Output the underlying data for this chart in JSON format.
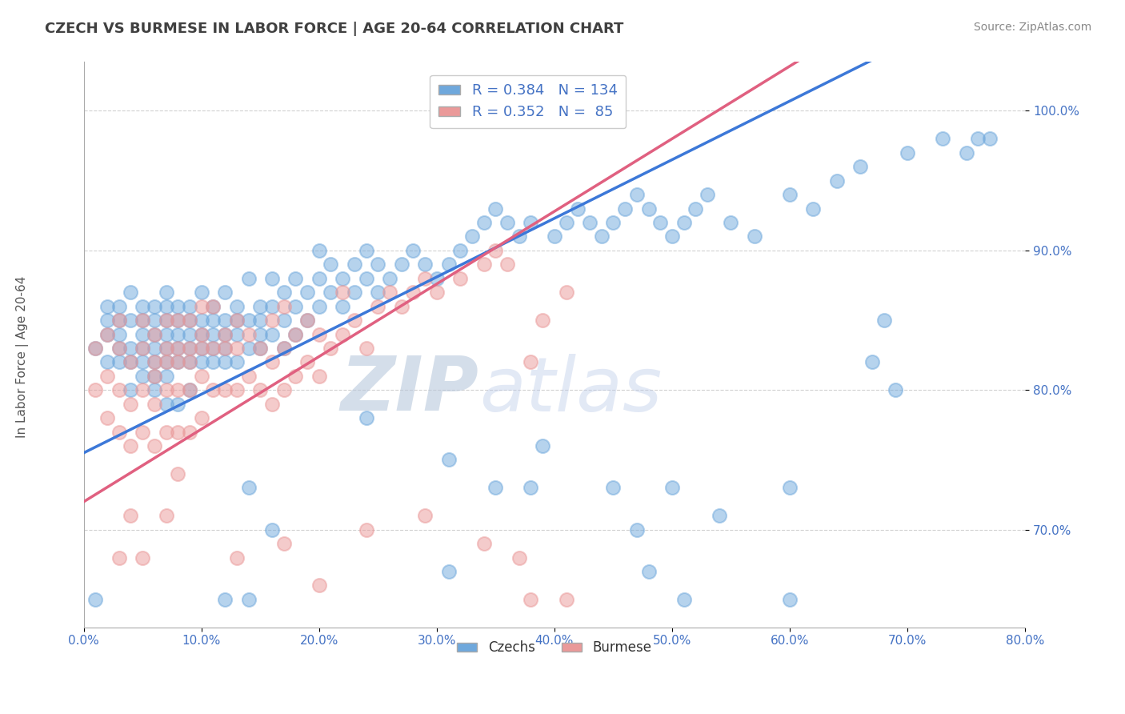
{
  "title": "CZECH VS BURMESE IN LABOR FORCE | AGE 20-64 CORRELATION CHART",
  "source_text": "Source: ZipAtlas.com",
  "ylabel": "In Labor Force | Age 20-64",
  "xlim": [
    0.0,
    0.8
  ],
  "ylim": [
    0.63,
    1.035
  ],
  "czech_color": "#6fa8dc",
  "burmese_color": "#ea9999",
  "czech_line_color": "#3c78d8",
  "burmese_line_color": "#e06080",
  "watermark_color": "#c9d9f0",
  "grid_color": "#cccccc",
  "background_color": "#ffffff",
  "title_color": "#404040",
  "axis_label_color": "#4472c4",
  "czech_slope": 0.42,
  "czech_intercept": 0.755,
  "burmese_slope": 0.52,
  "burmese_intercept": 0.72,
  "czech_points": [
    [
      0.01,
      0.83
    ],
    [
      0.02,
      0.85
    ],
    [
      0.02,
      0.82
    ],
    [
      0.02,
      0.86
    ],
    [
      0.02,
      0.84
    ],
    [
      0.03,
      0.84
    ],
    [
      0.03,
      0.82
    ],
    [
      0.03,
      0.86
    ],
    [
      0.03,
      0.83
    ],
    [
      0.03,
      0.85
    ],
    [
      0.04,
      0.83
    ],
    [
      0.04,
      0.85
    ],
    [
      0.04,
      0.82
    ],
    [
      0.04,
      0.8
    ],
    [
      0.04,
      0.87
    ],
    [
      0.05,
      0.84
    ],
    [
      0.05,
      0.82
    ],
    [
      0.05,
      0.86
    ],
    [
      0.05,
      0.83
    ],
    [
      0.05,
      0.85
    ],
    [
      0.05,
      0.81
    ],
    [
      0.06,
      0.84
    ],
    [
      0.06,
      0.82
    ],
    [
      0.06,
      0.86
    ],
    [
      0.06,
      0.83
    ],
    [
      0.06,
      0.85
    ],
    [
      0.06,
      0.81
    ],
    [
      0.07,
      0.85
    ],
    [
      0.07,
      0.83
    ],
    [
      0.07,
      0.87
    ],
    [
      0.07,
      0.84
    ],
    [
      0.07,
      0.82
    ],
    [
      0.07,
      0.86
    ],
    [
      0.07,
      0.81
    ],
    [
      0.08,
      0.84
    ],
    [
      0.08,
      0.82
    ],
    [
      0.08,
      0.86
    ],
    [
      0.08,
      0.83
    ],
    [
      0.08,
      0.85
    ],
    [
      0.09,
      0.84
    ],
    [
      0.09,
      0.86
    ],
    [
      0.09,
      0.82
    ],
    [
      0.09,
      0.85
    ],
    [
      0.09,
      0.83
    ],
    [
      0.1,
      0.85
    ],
    [
      0.1,
      0.83
    ],
    [
      0.1,
      0.87
    ],
    [
      0.1,
      0.84
    ],
    [
      0.1,
      0.82
    ],
    [
      0.11,
      0.84
    ],
    [
      0.11,
      0.86
    ],
    [
      0.11,
      0.82
    ],
    [
      0.11,
      0.85
    ],
    [
      0.11,
      0.83
    ],
    [
      0.12,
      0.85
    ],
    [
      0.12,
      0.83
    ],
    [
      0.12,
      0.87
    ],
    [
      0.12,
      0.84
    ],
    [
      0.12,
      0.82
    ],
    [
      0.13,
      0.84
    ],
    [
      0.13,
      0.86
    ],
    [
      0.13,
      0.82
    ],
    [
      0.13,
      0.85
    ],
    [
      0.14,
      0.85
    ],
    [
      0.14,
      0.88
    ],
    [
      0.14,
      0.83
    ],
    [
      0.15,
      0.84
    ],
    [
      0.15,
      0.86
    ],
    [
      0.15,
      0.83
    ],
    [
      0.15,
      0.85
    ],
    [
      0.16,
      0.86
    ],
    [
      0.16,
      0.84
    ],
    [
      0.16,
      0.88
    ],
    [
      0.17,
      0.85
    ],
    [
      0.17,
      0.83
    ],
    [
      0.17,
      0.87
    ],
    [
      0.18,
      0.86
    ],
    [
      0.18,
      0.84
    ],
    [
      0.18,
      0.88
    ],
    [
      0.19,
      0.87
    ],
    [
      0.19,
      0.85
    ],
    [
      0.2,
      0.86
    ],
    [
      0.2,
      0.88
    ],
    [
      0.2,
      0.9
    ],
    [
      0.21,
      0.87
    ],
    [
      0.21,
      0.89
    ],
    [
      0.22,
      0.88
    ],
    [
      0.22,
      0.86
    ],
    [
      0.23,
      0.87
    ],
    [
      0.23,
      0.89
    ],
    [
      0.24,
      0.88
    ],
    [
      0.24,
      0.9
    ],
    [
      0.25,
      0.89
    ],
    [
      0.25,
      0.87
    ],
    [
      0.26,
      0.88
    ],
    [
      0.27,
      0.89
    ],
    [
      0.28,
      0.9
    ],
    [
      0.29,
      0.89
    ],
    [
      0.3,
      0.88
    ],
    [
      0.31,
      0.89
    ],
    [
      0.32,
      0.9
    ],
    [
      0.33,
      0.91
    ],
    [
      0.34,
      0.92
    ],
    [
      0.35,
      0.93
    ],
    [
      0.36,
      0.92
    ],
    [
      0.37,
      0.91
    ],
    [
      0.38,
      0.92
    ],
    [
      0.4,
      0.91
    ],
    [
      0.41,
      0.92
    ],
    [
      0.42,
      0.93
    ],
    [
      0.43,
      0.92
    ],
    [
      0.44,
      0.91
    ],
    [
      0.45,
      0.92
    ],
    [
      0.46,
      0.93
    ],
    [
      0.47,
      0.94
    ],
    [
      0.48,
      0.93
    ],
    [
      0.49,
      0.92
    ],
    [
      0.5,
      0.91
    ],
    [
      0.51,
      0.92
    ],
    [
      0.52,
      0.93
    ],
    [
      0.53,
      0.94
    ],
    [
      0.55,
      0.92
    ],
    [
      0.57,
      0.91
    ],
    [
      0.6,
      0.94
    ],
    [
      0.62,
      0.93
    ],
    [
      0.64,
      0.95
    ],
    [
      0.66,
      0.96
    ],
    [
      0.68,
      0.85
    ],
    [
      0.7,
      0.97
    ],
    [
      0.73,
      0.98
    ],
    [
      0.75,
      0.97
    ],
    [
      0.76,
      0.98
    ],
    [
      0.77,
      0.98
    ],
    [
      0.06,
      0.8
    ],
    [
      0.07,
      0.79
    ],
    [
      0.08,
      0.79
    ],
    [
      0.09,
      0.8
    ],
    [
      0.14,
      0.73
    ],
    [
      0.16,
      0.7
    ],
    [
      0.24,
      0.78
    ],
    [
      0.31,
      0.75
    ],
    [
      0.35,
      0.73
    ],
    [
      0.39,
      0.76
    ],
    [
      0.45,
      0.73
    ],
    [
      0.47,
      0.7
    ],
    [
      0.5,
      0.73
    ],
    [
      0.54,
      0.71
    ],
    [
      0.6,
      0.73
    ],
    [
      0.67,
      0.82
    ],
    [
      0.69,
      0.8
    ],
    [
      0.01,
      0.65
    ],
    [
      0.12,
      0.65
    ],
    [
      0.14,
      0.65
    ],
    [
      0.31,
      0.67
    ],
    [
      0.38,
      0.73
    ],
    [
      0.48,
      0.67
    ],
    [
      0.51,
      0.65
    ],
    [
      0.6,
      0.65
    ]
  ],
  "burmese_points": [
    [
      0.01,
      0.83
    ],
    [
      0.01,
      0.8
    ],
    [
      0.02,
      0.84
    ],
    [
      0.02,
      0.81
    ],
    [
      0.02,
      0.78
    ],
    [
      0.03,
      0.83
    ],
    [
      0.03,
      0.8
    ],
    [
      0.03,
      0.77
    ],
    [
      0.03,
      0.85
    ],
    [
      0.04,
      0.82
    ],
    [
      0.04,
      0.79
    ],
    [
      0.04,
      0.76
    ],
    [
      0.05,
      0.83
    ],
    [
      0.05,
      0.8
    ],
    [
      0.05,
      0.77
    ],
    [
      0.05,
      0.85
    ],
    [
      0.06,
      0.82
    ],
    [
      0.06,
      0.79
    ],
    [
      0.06,
      0.76
    ],
    [
      0.06,
      0.84
    ],
    [
      0.06,
      0.81
    ],
    [
      0.07,
      0.83
    ],
    [
      0.07,
      0.8
    ],
    [
      0.07,
      0.77
    ],
    [
      0.07,
      0.85
    ],
    [
      0.07,
      0.82
    ],
    [
      0.08,
      0.83
    ],
    [
      0.08,
      0.8
    ],
    [
      0.08,
      0.77
    ],
    [
      0.08,
      0.85
    ],
    [
      0.08,
      0.82
    ],
    [
      0.09,
      0.83
    ],
    [
      0.09,
      0.8
    ],
    [
      0.09,
      0.77
    ],
    [
      0.09,
      0.85
    ],
    [
      0.09,
      0.82
    ],
    [
      0.1,
      0.84
    ],
    [
      0.1,
      0.81
    ],
    [
      0.1,
      0.78
    ],
    [
      0.1,
      0.86
    ],
    [
      0.1,
      0.83
    ],
    [
      0.11,
      0.83
    ],
    [
      0.11,
      0.8
    ],
    [
      0.11,
      0.86
    ],
    [
      0.12,
      0.83
    ],
    [
      0.12,
      0.8
    ],
    [
      0.12,
      0.84
    ],
    [
      0.13,
      0.83
    ],
    [
      0.13,
      0.8
    ],
    [
      0.13,
      0.85
    ],
    [
      0.14,
      0.84
    ],
    [
      0.14,
      0.81
    ],
    [
      0.15,
      0.83
    ],
    [
      0.15,
      0.8
    ],
    [
      0.16,
      0.82
    ],
    [
      0.16,
      0.79
    ],
    [
      0.16,
      0.85
    ],
    [
      0.17,
      0.83
    ],
    [
      0.17,
      0.8
    ],
    [
      0.17,
      0.86
    ],
    [
      0.18,
      0.84
    ],
    [
      0.18,
      0.81
    ],
    [
      0.19,
      0.85
    ],
    [
      0.19,
      0.82
    ],
    [
      0.2,
      0.84
    ],
    [
      0.2,
      0.81
    ],
    [
      0.21,
      0.83
    ],
    [
      0.22,
      0.84
    ],
    [
      0.22,
      0.87
    ],
    [
      0.23,
      0.85
    ],
    [
      0.24,
      0.83
    ],
    [
      0.25,
      0.86
    ],
    [
      0.26,
      0.87
    ],
    [
      0.27,
      0.86
    ],
    [
      0.28,
      0.87
    ],
    [
      0.29,
      0.88
    ],
    [
      0.3,
      0.87
    ],
    [
      0.32,
      0.88
    ],
    [
      0.34,
      0.89
    ],
    [
      0.35,
      0.9
    ],
    [
      0.36,
      0.89
    ],
    [
      0.38,
      0.82
    ],
    [
      0.39,
      0.85
    ],
    [
      0.41,
      0.87
    ],
    [
      0.03,
      0.68
    ],
    [
      0.04,
      0.71
    ],
    [
      0.05,
      0.68
    ],
    [
      0.07,
      0.71
    ],
    [
      0.13,
      0.68
    ],
    [
      0.17,
      0.69
    ],
    [
      0.2,
      0.66
    ],
    [
      0.24,
      0.7
    ],
    [
      0.29,
      0.71
    ],
    [
      0.34,
      0.69
    ],
    [
      0.37,
      0.68
    ],
    [
      0.41,
      0.65
    ],
    [
      0.08,
      0.74
    ],
    [
      0.38,
      0.65
    ]
  ]
}
